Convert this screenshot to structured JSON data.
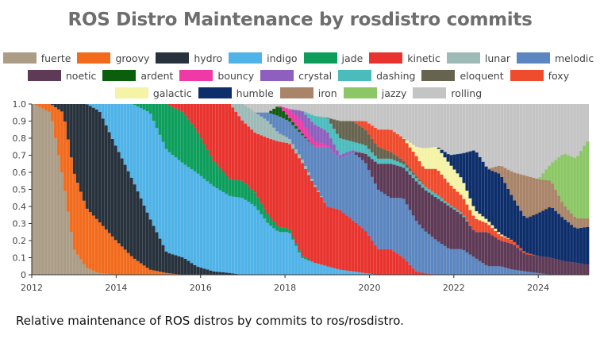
{
  "chart_data": {
    "type": "area",
    "stacked": true,
    "normalized": true,
    "title": "ROS Distro Maintenance by rosdistro commits",
    "xlabel": "",
    "ylabel": "",
    "xlim": [
      2012,
      2025.2
    ],
    "ylim": [
      0,
      1
    ],
    "x_ticks": [
      "2012",
      "2014",
      "2016",
      "2018",
      "2020",
      "2022",
      "2024"
    ],
    "y_ticks": [
      "0",
      "0.1",
      "0.2",
      "0.3",
      "0.4",
      "0.5",
      "0.6",
      "0.7",
      "0.8",
      "0.9",
      "1.0"
    ],
    "legend_position": "top",
    "caption": "Relative maintenance of ROS distros by commits to ros/rosdistro.",
    "series": [
      {
        "name": "fuerte",
        "color": "#ab9c86"
      },
      {
        "name": "groovy",
        "color": "#f26b1d"
      },
      {
        "name": "hydro",
        "color": "#28323c"
      },
      {
        "name": "indigo",
        "color": "#4fb3e8"
      },
      {
        "name": "jade",
        "color": "#0e9e5c"
      },
      {
        "name": "kinetic",
        "color": "#e8332e"
      },
      {
        "name": "lunar",
        "color": "#9dbab7"
      },
      {
        "name": "melodic",
        "color": "#5c86bf"
      },
      {
        "name": "noetic",
        "color": "#5e3a56"
      },
      {
        "name": "ardent",
        "color": "#0b5e0b"
      },
      {
        "name": "bouncy",
        "color": "#ee39a7"
      },
      {
        "name": "crystal",
        "color": "#8e5fbf"
      },
      {
        "name": "dashing",
        "color": "#4bbcbc"
      },
      {
        "name": "eloquent",
        "color": "#66634f"
      },
      {
        "name": "foxy",
        "color": "#ef4b2d"
      },
      {
        "name": "galactic",
        "color": "#f5f3a6"
      },
      {
        "name": "humble",
        "color": "#0d2e6b"
      },
      {
        "name": "iron",
        "color": "#a98468"
      },
      {
        "name": "jazzy",
        "color": "#8bc764"
      },
      {
        "name": "rolling",
        "color": "#c4c4c4"
      }
    ],
    "shares": {
      "x": [
        2012.05,
        2012.45,
        2012.75,
        2013.0,
        2013.3,
        2013.6,
        2014.0,
        2014.4,
        2014.8,
        2015.2,
        2015.6,
        2015.9,
        2016.3,
        2016.7,
        2017.0,
        2017.3,
        2017.6,
        2017.85,
        2018.1,
        2018.4,
        2018.7,
        2019.0,
        2019.3,
        2019.6,
        2019.9,
        2020.2,
        2020.5,
        2020.8,
        2021.1,
        2021.3,
        2021.6,
        2021.9,
        2022.2,
        2022.5,
        2022.8,
        2023.1,
        2023.4,
        2023.7,
        2024.0,
        2024.3,
        2024.6,
        2024.9,
        2025.15
      ],
      "fuerte": [
        1.0,
        0.95,
        0.55,
        0.15,
        0.04,
        0.01,
        0,
        0,
        0,
        0,
        0,
        0,
        0,
        0,
        0,
        0,
        0,
        0,
        0,
        0,
        0,
        0,
        0,
        0,
        0,
        0,
        0,
        0,
        0,
        0,
        0,
        0,
        0,
        0,
        0,
        0,
        0,
        0,
        0,
        0,
        0,
        0,
        0
      ],
      "groovy": [
        0,
        0.05,
        0.4,
        0.45,
        0.35,
        0.3,
        0.2,
        0.1,
        0.03,
        0.01,
        0,
        0,
        0,
        0,
        0,
        0,
        0,
        0,
        0,
        0,
        0,
        0,
        0,
        0,
        0,
        0,
        0,
        0,
        0,
        0,
        0,
        0,
        0,
        0,
        0,
        0,
        0,
        0,
        0,
        0,
        0,
        0,
        0
      ],
      "hydro": [
        0,
        0,
        0.05,
        0.4,
        0.61,
        0.65,
        0.55,
        0.45,
        0.3,
        0.12,
        0.1,
        0.05,
        0.02,
        0.01,
        0,
        0,
        0,
        0,
        0,
        0,
        0,
        0,
        0,
        0,
        0,
        0,
        0,
        0,
        0,
        0,
        0,
        0,
        0,
        0,
        0,
        0,
        0,
        0,
        0,
        0,
        0,
        0,
        0
      ],
      "indigo": [
        0,
        0,
        0,
        0,
        0,
        0.04,
        0.25,
        0.45,
        0.62,
        0.6,
        0.55,
        0.55,
        0.5,
        0.45,
        0.45,
        0.4,
        0.3,
        0.25,
        0.25,
        0.1,
        0.07,
        0.05,
        0.03,
        0.02,
        0.01,
        0,
        0,
        0,
        0,
        0,
        0,
        0,
        0,
        0,
        0,
        0,
        0,
        0,
        0,
        0,
        0,
        0,
        0
      ],
      "jade": [
        0,
        0,
        0,
        0,
        0,
        0,
        0,
        0,
        0.05,
        0.27,
        0.3,
        0.25,
        0.15,
        0.1,
        0.1,
        0.08,
        0.05,
        0.03,
        0.02,
        0.01,
        0,
        0,
        0,
        0,
        0,
        0,
        0,
        0,
        0,
        0,
        0,
        0,
        0,
        0,
        0,
        0,
        0,
        0,
        0,
        0,
        0,
        0,
        0
      ],
      "kinetic": [
        0,
        0,
        0,
        0,
        0,
        0,
        0,
        0,
        0,
        0,
        0.05,
        0.15,
        0.33,
        0.44,
        0.35,
        0.35,
        0.45,
        0.5,
        0.5,
        0.55,
        0.45,
        0.35,
        0.35,
        0.3,
        0.25,
        0.15,
        0.15,
        0.1,
        0.02,
        0.01,
        0,
        0,
        0,
        0,
        0,
        0,
        0,
        0,
        0,
        0,
        0,
        0,
        0
      ],
      "lunar": [
        0,
        0,
        0,
        0,
        0,
        0,
        0,
        0,
        0,
        0,
        0,
        0,
        0,
        0,
        0.1,
        0.12,
        0.1,
        0.05,
        0.03,
        0.02,
        0.01,
        0,
        0,
        0,
        0,
        0,
        0,
        0,
        0,
        0,
        0,
        0,
        0,
        0,
        0,
        0,
        0,
        0,
        0,
        0,
        0,
        0,
        0
      ],
      "melodic": [
        0,
        0,
        0,
        0,
        0,
        0,
        0,
        0,
        0,
        0,
        0,
        0,
        0,
        0,
        0,
        0,
        0.05,
        0.1,
        0.1,
        0.14,
        0.22,
        0.35,
        0.3,
        0.4,
        0.4,
        0.35,
        0.3,
        0.35,
        0.3,
        0.25,
        0.2,
        0.15,
        0.15,
        0.1,
        0.05,
        0.05,
        0.03,
        0.02,
        0.01,
        0,
        0,
        0,
        0
      ],
      "noetic": [
        0,
        0,
        0,
        0,
        0,
        0,
        0,
        0,
        0,
        0,
        0,
        0,
        0,
        0,
        0,
        0,
        0,
        0,
        0,
        0,
        0,
        0,
        0,
        0,
        0.05,
        0.15,
        0.2,
        0.18,
        0.23,
        0.24,
        0.25,
        0.25,
        0.2,
        0.15,
        0.2,
        0.15,
        0.15,
        0.1,
        0.1,
        0.1,
        0.08,
        0.07,
        0.06
      ],
      "ardent": [
        0,
        0,
        0,
        0,
        0,
        0,
        0,
        0,
        0,
        0,
        0,
        0,
        0,
        0,
        0,
        0,
        0,
        0.06,
        0.02,
        0.01,
        0,
        0,
        0,
        0,
        0,
        0,
        0,
        0,
        0,
        0,
        0,
        0,
        0,
        0,
        0,
        0,
        0,
        0,
        0,
        0,
        0,
        0,
        0
      ],
      "bouncy": [
        0,
        0,
        0,
        0,
        0,
        0,
        0,
        0,
        0,
        0,
        0,
        0,
        0,
        0,
        0,
        0,
        0,
        0,
        0.05,
        0.07,
        0.03,
        0.01,
        0,
        0,
        0,
        0,
        0,
        0,
        0,
        0,
        0,
        0,
        0,
        0,
        0,
        0,
        0,
        0,
        0,
        0,
        0,
        0,
        0
      ],
      "crystal": [
        0,
        0,
        0,
        0,
        0,
        0,
        0,
        0,
        0,
        0,
        0,
        0,
        0,
        0,
        0,
        0,
        0,
        0,
        0,
        0.06,
        0.1,
        0.08,
        0.02,
        0.01,
        0,
        0,
        0,
        0,
        0,
        0,
        0,
        0,
        0,
        0,
        0,
        0,
        0,
        0,
        0,
        0,
        0,
        0,
        0
      ],
      "dashing": [
        0,
        0,
        0,
        0,
        0,
        0,
        0,
        0,
        0,
        0,
        0,
        0,
        0,
        0,
        0,
        0,
        0,
        0,
        0,
        0,
        0.05,
        0.08,
        0.1,
        0.05,
        0.05,
        0.03,
        0.03,
        0.02,
        0.02,
        0.02,
        0.02,
        0.01,
        0.01,
        0,
        0,
        0,
        0,
        0,
        0,
        0,
        0,
        0,
        0
      ],
      "eloquent": [
        0,
        0,
        0,
        0,
        0,
        0,
        0,
        0,
        0,
        0,
        0,
        0,
        0,
        0,
        0,
        0,
        0,
        0,
        0,
        0,
        0,
        0,
        0.1,
        0.12,
        0.09,
        0.07,
        0.04,
        0.02,
        0.01,
        0,
        0,
        0,
        0,
        0,
        0,
        0,
        0,
        0,
        0,
        0,
        0,
        0,
        0
      ],
      "foxy": [
        0,
        0,
        0,
        0,
        0,
        0,
        0,
        0,
        0,
        0,
        0,
        0,
        0,
        0,
        0,
        0,
        0,
        0,
        0,
        0,
        0,
        0,
        0,
        0,
        0.05,
        0.1,
        0.13,
        0.13,
        0.12,
        0.1,
        0.15,
        0.12,
        0.1,
        0.08,
        0.05,
        0.03,
        0.02,
        0.01,
        0,
        0,
        0,
        0,
        0
      ],
      "galactic": [
        0,
        0,
        0,
        0,
        0,
        0,
        0,
        0,
        0,
        0,
        0,
        0,
        0,
        0,
        0,
        0,
        0,
        0,
        0,
        0,
        0,
        0,
        0,
        0,
        0,
        0,
        0,
        0,
        0.05,
        0.12,
        0.13,
        0.12,
        0.1,
        0.05,
        0.02,
        0.01,
        0,
        0,
        0,
        0,
        0,
        0,
        0
      ],
      "humble": [
        0,
        0,
        0,
        0,
        0,
        0,
        0,
        0,
        0,
        0,
        0,
        0,
        0,
        0,
        0,
        0,
        0,
        0,
        0,
        0,
        0,
        0,
        0,
        0,
        0,
        0,
        0,
        0,
        0,
        0,
        0,
        0.05,
        0.15,
        0.35,
        0.3,
        0.35,
        0.25,
        0.2,
        0.25,
        0.3,
        0.25,
        0.2,
        0.22
      ],
      "iron": [
        0,
        0,
        0,
        0,
        0,
        0,
        0,
        0,
        0,
        0,
        0,
        0,
        0,
        0,
        0,
        0,
        0,
        0,
        0,
        0,
        0,
        0,
        0,
        0,
        0,
        0,
        0,
        0,
        0,
        0,
        0,
        0,
        0,
        0,
        0,
        0.05,
        0.15,
        0.25,
        0.2,
        0.15,
        0.08,
        0.06,
        0.05
      ],
      "jazzy": [
        0,
        0,
        0,
        0,
        0,
        0,
        0,
        0,
        0,
        0,
        0,
        0,
        0,
        0,
        0,
        0,
        0,
        0,
        0,
        0,
        0,
        0,
        0,
        0,
        0,
        0,
        0,
        0,
        0,
        0,
        0,
        0,
        0,
        0,
        0,
        0,
        0,
        0,
        0,
        0.1,
        0.3,
        0.35,
        0.45
      ]
    }
  }
}
